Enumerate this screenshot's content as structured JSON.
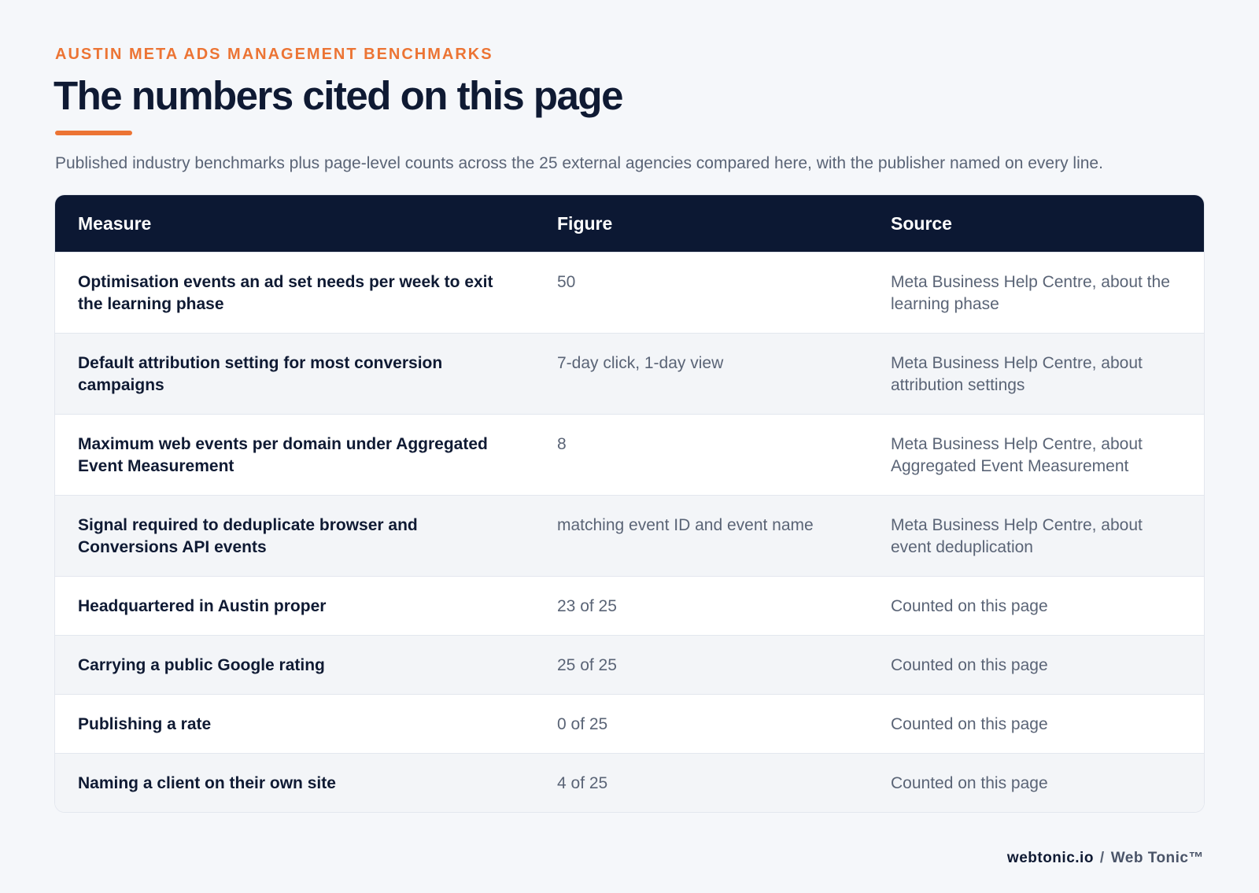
{
  "header": {
    "eyebrow": "AUSTIN META ADS MANAGEMENT BENCHMARKS",
    "title": "The numbers cited on this page",
    "subtitle": "Published industry benchmarks plus page-level counts across the 25 external agencies compared here, with the publisher named on every line."
  },
  "table": {
    "columns": [
      "Measure",
      "Figure",
      "Source"
    ],
    "rows": [
      [
        "Optimisation events an ad set needs per week to exit the learning phase",
        50,
        "Meta Business Help Centre, about the learning phase"
      ],
      [
        "Default attribution setting for most conversion campaigns",
        "7-day click, 1-day view",
        "Meta Business Help Centre, about attribution settings"
      ],
      [
        "Maximum web events per domain under Aggregated Event Measurement",
        8,
        "Meta Business Help Centre, about Aggregated Event Measurement"
      ],
      [
        "Signal required to deduplicate browser and Conversions API events",
        "matching event ID and event name",
        "Meta Business Help Centre, about event deduplication"
      ],
      [
        "Headquartered in Austin proper",
        "23 of 25",
        "Counted on this page"
      ],
      [
        "Carrying a public Google rating",
        "25 of 25",
        "Counted on this page"
      ],
      [
        "Publishing a rate",
        "0 of 25",
        "Counted on this page"
      ],
      [
        "Naming a client on their own site",
        "4 of 25",
        "Counted on this page"
      ]
    ]
  },
  "footer": {
    "domain": "webtonic.io",
    "separator": "/",
    "brand": "Web Tonic™"
  }
}
